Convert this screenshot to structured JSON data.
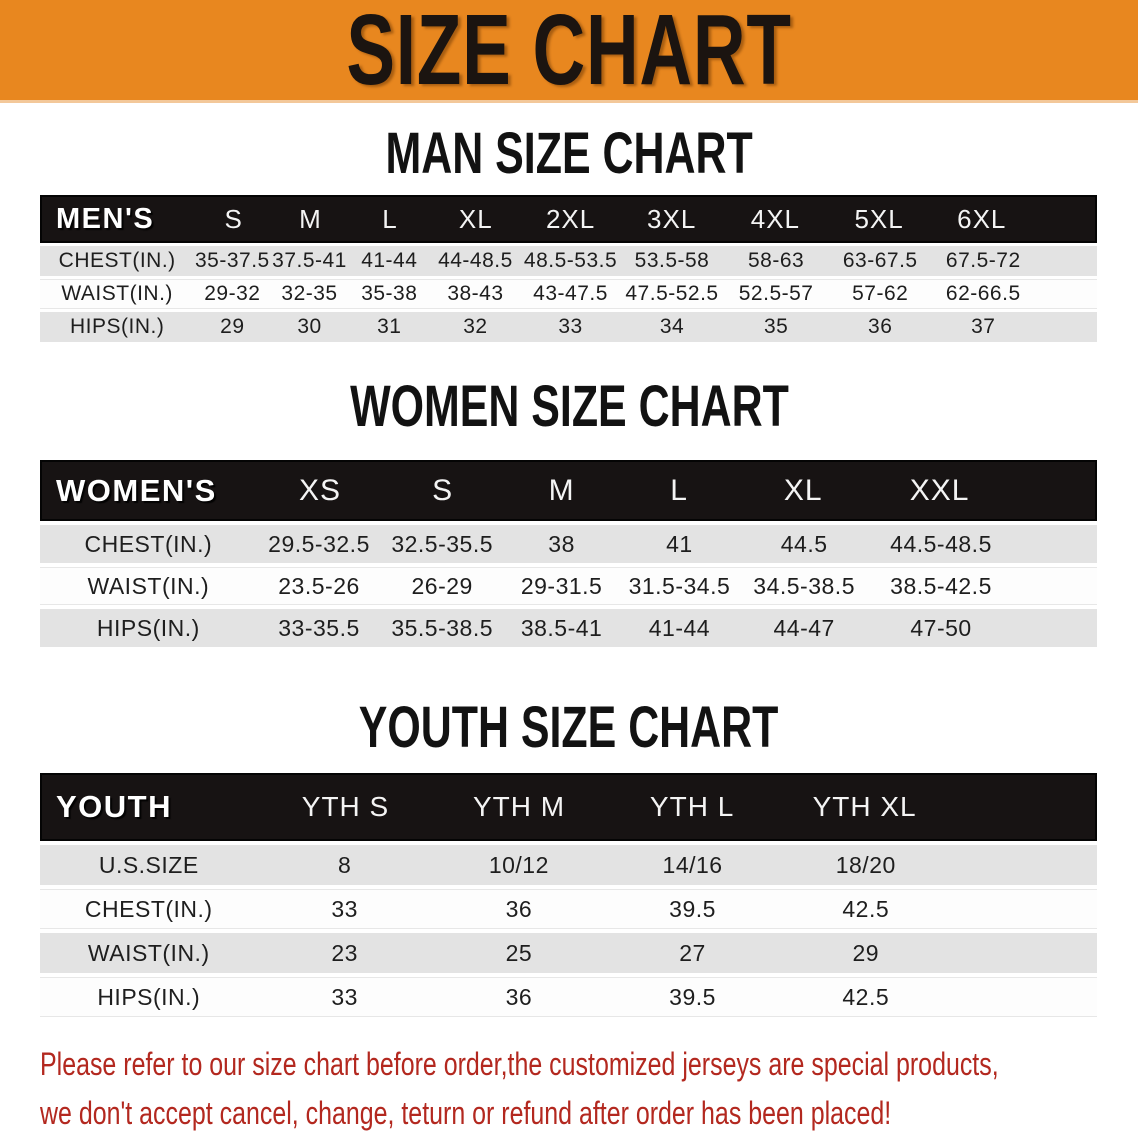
{
  "banner": {
    "title": "SIZE CHART",
    "bg_color": "#e8871f",
    "text_color": "#1b1410"
  },
  "sections": [
    {
      "heading": "MAN SIZE CHART",
      "header_label": "MEN'S",
      "columns": [
        "S",
        "M",
        "L",
        "XL",
        "2XL",
        "3XL",
        "4XL",
        "5XL",
        "6XL"
      ],
      "rows": [
        {
          "label": "CHEST(IN.)",
          "values": [
            "35-37.5",
            "37.5-41",
            "41-44",
            "44-48.5",
            "48.5-53.5",
            "53.5-58",
            "58-63",
            "63-67.5",
            "67.5-72"
          ]
        },
        {
          "label": "WAIST(IN.)",
          "values": [
            "29-32",
            "32-35",
            "35-38",
            "38-43",
            "43-47.5",
            "47.5-52.5",
            "52.5-57",
            "57-62",
            "62-66.5"
          ]
        },
        {
          "label": "HIPS(IN.)",
          "values": [
            "29",
            "30",
            "31",
            "32",
            "33",
            "34",
            "35",
            "36",
            "37"
          ]
        }
      ]
    },
    {
      "heading": "WOMEN SIZE CHART",
      "header_label": "WOMEN'S",
      "columns": [
        "XS",
        "S",
        "M",
        "L",
        "XL",
        "XXL"
      ],
      "rows": [
        {
          "label": "CHEST(IN.)",
          "values": [
            "29.5-32.5",
            "32.5-35.5",
            "38",
            "41",
            "44.5",
            "44.5-48.5"
          ]
        },
        {
          "label": "WAIST(IN.)",
          "values": [
            "23.5-26",
            "26-29",
            "29-31.5",
            "31.5-34.5",
            "34.5-38.5",
            "38.5-42.5"
          ]
        },
        {
          "label": "HIPS(IN.)",
          "values": [
            "33-35.5",
            "35.5-38.5",
            "38.5-41",
            "41-44",
            "44-47",
            "47-50"
          ]
        }
      ]
    },
    {
      "heading": "YOUTH SIZE CHART",
      "header_label": "YOUTH",
      "columns": [
        "YTH S",
        "YTH M",
        "YTH L",
        "YTH XL"
      ],
      "rows": [
        {
          "label": "U.S.SIZE",
          "values": [
            "8",
            "10/12",
            "14/16",
            "18/20"
          ]
        },
        {
          "label": "CHEST(IN.)",
          "values": [
            "33",
            "36",
            "39.5",
            "42.5"
          ]
        },
        {
          "label": "WAIST(IN.)",
          "values": [
            "23",
            "25",
            "27",
            "29"
          ]
        },
        {
          "label": "HIPS(IN.)",
          "values": [
            "33",
            "36",
            "39.5",
            "42.5"
          ]
        }
      ]
    }
  ],
  "footer": {
    "line1": "Please refer to our size chart before order,the customized jerseys are special products,",
    "line2": "we don't accept cancel, change, teturn or refund after order has been placed!",
    "text_color": "#b3281f"
  },
  "colors": {
    "banner_orange": "#e8871f",
    "table_header_black": "#171313",
    "row_gray": "#e3e3e3",
    "row_white": "#fdfdfd",
    "footer_red": "#b3281f"
  }
}
